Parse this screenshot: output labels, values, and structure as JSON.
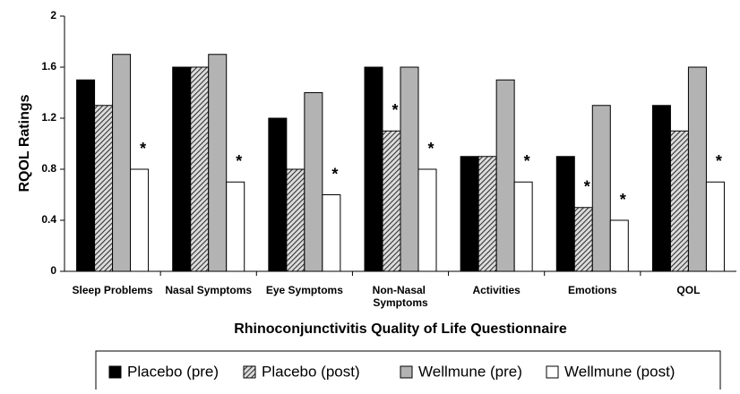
{
  "chart_data": {
    "type": "bar",
    "y_label": "RQOL Ratings",
    "x_label": "Rhinoconjunctivitis Quality of Life Questionnaire",
    "categories": [
      "Sleep Problems",
      "Nasal Symptoms",
      "Eye Symptoms",
      "Non-Nasal Symptoms",
      "Activities",
      "Emotions",
      "QOL"
    ],
    "series": [
      {
        "name": "Placebo (pre)",
        "color": "#000000",
        "values": [
          1.5,
          1.6,
          1.2,
          1.6,
          0.9,
          0.9,
          1.3
        ]
      },
      {
        "name": "Placebo (post)",
        "color": "#555555",
        "pattern": "hatch",
        "values": [
          1.3,
          1.6,
          0.8,
          1.1,
          0.9,
          0.5,
          1.1
        ],
        "significance": [
          null,
          null,
          null,
          "*",
          null,
          "*",
          null
        ]
      },
      {
        "name": "Wellmune (pre)",
        "color": "#b3b3b3",
        "values": [
          1.7,
          1.7,
          1.4,
          1.6,
          1.5,
          1.3,
          1.6
        ]
      },
      {
        "name": "Wellmune (post)",
        "color": "#ffffff",
        "values": [
          0.8,
          0.7,
          0.6,
          0.8,
          0.7,
          0.4,
          0.7
        ],
        "significance": [
          "*",
          "*",
          "*",
          "*",
          "*",
          "*",
          "*"
        ]
      }
    ],
    "ylim": [
      0,
      2
    ],
    "yticks": [
      0,
      0.4,
      0.8,
      1.2,
      1.6,
      2
    ],
    "grid": false,
    "legend": "bottom"
  }
}
